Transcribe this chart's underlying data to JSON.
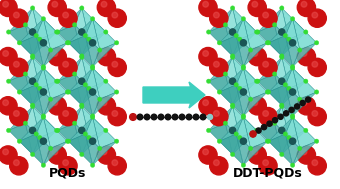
{
  "background_color": "#ffffff",
  "label_left": "PQDs",
  "label_right": "DDT-PQDs",
  "label_fontsize": 9,
  "label_fontweight": "bold",
  "arrow_color": "#3ecfbf",
  "teal_face_light": "#7dddd4",
  "teal_face_dark": "#5abfb8",
  "teal_face_side": "#3da8a0",
  "teal_edge": "#2a9090",
  "green_node": "#33dd33",
  "dark_center": "#1a5555",
  "red_sphere": "#cc1111",
  "red_highlight": "#ee4444",
  "mol_dark": "#111111",
  "mol_red": "#bb1111",
  "mol_teal": "#88cccc",
  "fig_width": 3.4,
  "fig_height": 1.89,
  "dpi": 100
}
